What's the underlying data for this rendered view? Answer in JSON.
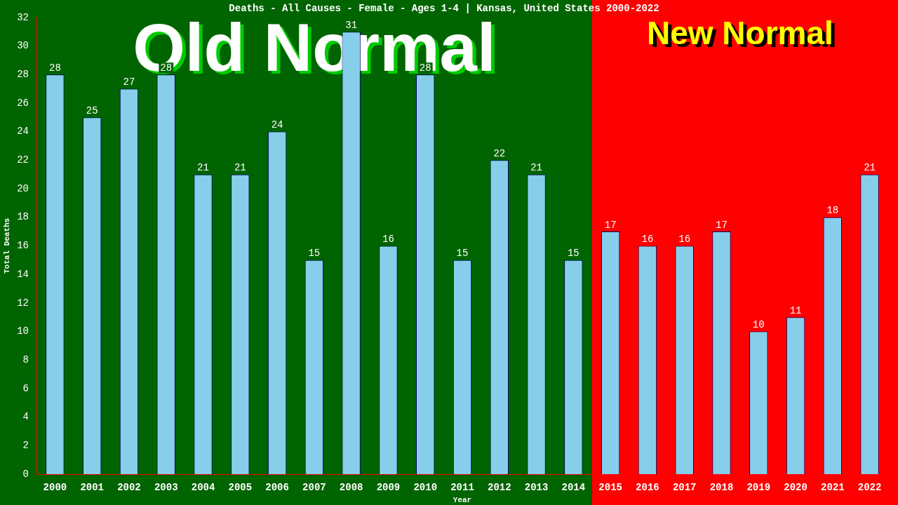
{
  "chart_data": {
    "type": "bar",
    "title": "Deaths - All Causes - Female - Ages 1-4 | Kansas, United States 2000-2022",
    "xlabel": "Year",
    "ylabel": "Total Deaths",
    "categories": [
      "2000",
      "2001",
      "2002",
      "2003",
      "2004",
      "2005",
      "2006",
      "2007",
      "2008",
      "2009",
      "2010",
      "2011",
      "2012",
      "2013",
      "2014",
      "2015",
      "2016",
      "2017",
      "2018",
      "2019",
      "2020",
      "2021",
      "2022"
    ],
    "values": [
      28,
      25,
      27,
      28,
      21,
      21,
      24,
      15,
      31,
      16,
      28,
      15,
      22,
      21,
      15,
      17,
      16,
      16,
      17,
      10,
      11,
      18,
      21
    ],
    "color": "#87ceeb",
    "data_labels": true,
    "ylim": [
      0,
      32
    ],
    "yticks": [
      0,
      2,
      4,
      6,
      8,
      10,
      12,
      14,
      16,
      18,
      20,
      22,
      24,
      26,
      28,
      30,
      32
    ],
    "grid": false,
    "legend": false,
    "bands": [
      {
        "axis": "x",
        "from": "2000",
        "to": "2014",
        "label": "Old Normal",
        "color": "#006400"
      },
      {
        "axis": "x",
        "from": "2015",
        "to": "2022",
        "label": "New Normal",
        "color": "#ff0000"
      }
    ]
  }
}
